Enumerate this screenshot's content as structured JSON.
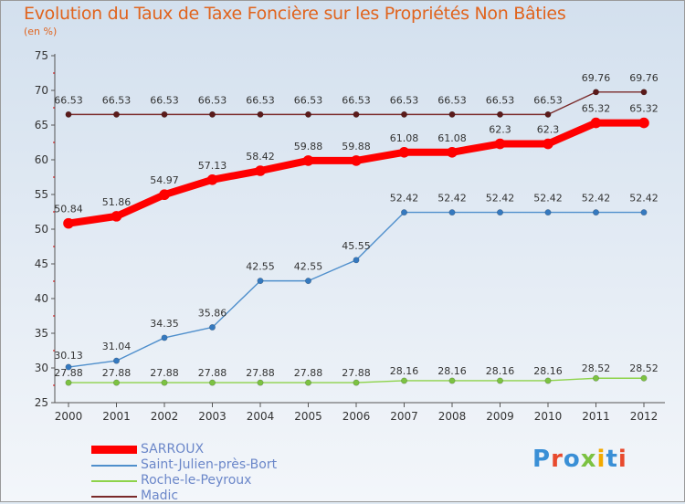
{
  "chart_data": {
    "type": "line",
    "title": "Evolution du Taux de Taxe Foncière sur les Propriétés Non Bâties",
    "ylabel": "(en %)",
    "x": [
      "2000",
      "2001",
      "2002",
      "2003",
      "2004",
      "2005",
      "2006",
      "2007",
      "2008",
      "2009",
      "2010",
      "2011",
      "2012"
    ],
    "ylim": [
      25,
      75
    ],
    "yticks": [
      25,
      30,
      35,
      40,
      45,
      50,
      55,
      60,
      65,
      70,
      75
    ],
    "grid": false,
    "legend_position": "bottom-left",
    "series": [
      {
        "name": "SARROUX",
        "color": "#ff0000",
        "values": [
          50.84,
          51.86,
          54.97,
          57.13,
          58.42,
          59.88,
          59.88,
          61.08,
          61.08,
          62.3,
          62.3,
          65.32,
          65.32
        ],
        "labels": [
          "50.84",
          "51.86",
          "54.97",
          "57.13",
          "58.42",
          "59.88",
          "59.88",
          "61.08",
          "61.08",
          "62.3",
          "62.3",
          "65.32",
          "65.32"
        ]
      },
      {
        "name": "Saint-Julien-près-Bort",
        "color": "#4f8fcc",
        "values": [
          30.13,
          31.04,
          34.35,
          35.86,
          42.55,
          42.55,
          45.55,
          52.42,
          52.42,
          52.42,
          52.42,
          52.42,
          52.42
        ],
        "labels": [
          "30.13",
          "31.04",
          "34.35",
          "35.86",
          "42.55",
          "42.55",
          "45.55",
          "52.42",
          "52.42",
          "52.42",
          "52.42",
          "52.42",
          "52.42"
        ]
      },
      {
        "name": "Roche-le-Peyroux",
        "color": "#8ed34a",
        "values": [
          27.88,
          27.88,
          27.88,
          27.88,
          27.88,
          27.88,
          27.88,
          28.16,
          28.16,
          28.16,
          28.16,
          28.52,
          28.52
        ],
        "labels": [
          "27.88",
          "27.88",
          "27.88",
          "27.88",
          "27.88",
          "27.88",
          "27.88",
          "28.16",
          "28.16",
          "28.16",
          "28.16",
          "28.52",
          "28.52"
        ]
      },
      {
        "name": "Madic",
        "color": "#7a2a2a",
        "values": [
          66.53,
          66.53,
          66.53,
          66.53,
          66.53,
          66.53,
          66.53,
          66.53,
          66.53,
          66.53,
          66.53,
          69.76,
          69.76
        ],
        "labels": [
          "66.53",
          "66.53",
          "66.53",
          "66.53",
          "66.53",
          "66.53",
          "66.53",
          "66.53",
          "66.53",
          "66.53",
          "66.53",
          "69.76",
          "69.76"
        ]
      }
    ]
  },
  "logo": {
    "text": "Proxiti",
    "letters": [
      "P",
      "r",
      "o",
      "x",
      "i",
      "t",
      "i"
    ],
    "colors": [
      "#3a8fd6",
      "#e84a2e",
      "#3a8fd6",
      "#7cc242",
      "#f2a900",
      "#3a8fd6",
      "#e84a2e"
    ]
  }
}
